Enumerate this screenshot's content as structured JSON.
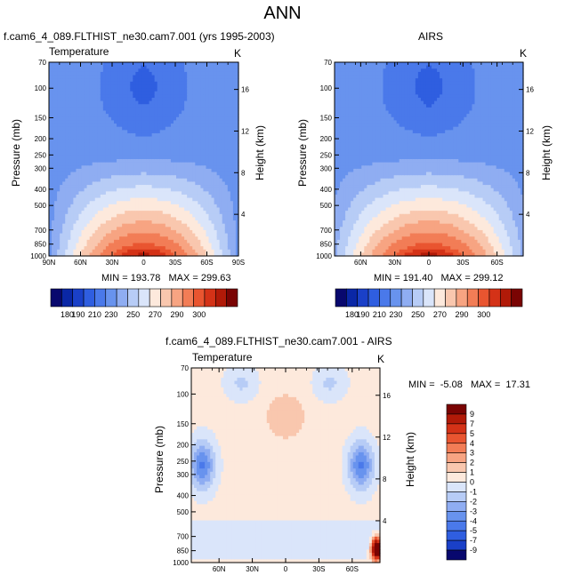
{
  "main_title": "ANN",
  "colors": {
    "temp_palette": [
      "#08086e",
      "#0a27a6",
      "#1a40c8",
      "#2f5ee0",
      "#4a79ea",
      "#6893ee",
      "#8fadf2",
      "#b7ccf6",
      "#dae5fa",
      "#fde9dc",
      "#f9c7ae",
      "#f7a482",
      "#f27d56",
      "#e95530",
      "#d43217",
      "#b11a08",
      "#7a0403"
    ],
    "diff_palette": [
      "#08086e",
      "#1a40c8",
      "#2f5ee0",
      "#4a79ea",
      "#6893ee",
      "#8fadf2",
      "#b7ccf6",
      "#dae5fa",
      "#fde9dc",
      "#f9c7ae",
      "#f7a482",
      "#f27d56",
      "#e95530",
      "#d43217",
      "#b11a08",
      "#7a0403"
    ]
  },
  "chart_data": [
    {
      "type": "heatmap",
      "title": "f.cam6_4_089.FLTHIST_ne30.cam7.001 (yrs 1995-2003)",
      "variable": "Temperature",
      "units": "K",
      "ylabel": "Pressure (mb)",
      "ylabel_right": "Height (km)",
      "x_ticks": [
        "90N",
        "60N",
        "30N",
        "0",
        "30S",
        "60S",
        "90S"
      ],
      "y_ticks": [
        "70",
        "100",
        "150",
        "200",
        "250",
        "300",
        "400",
        "500",
        "700",
        "850",
        "1000"
      ],
      "right_ticks": [
        "16",
        "12",
        "8",
        "4"
      ],
      "stats": "MIN = 193.78   MAX = 299.63",
      "colorbar_labels": [
        "180",
        "190",
        "210",
        "230",
        "250",
        "270",
        "290",
        "300"
      ]
    },
    {
      "type": "heatmap",
      "title": "AIRS",
      "variable": "",
      "units": "K",
      "ylabel": "Pressure (mb)",
      "ylabel_right": "Height (km)",
      "x_ticks": [
        "60N",
        "30N",
        "0",
        "30S",
        "60S"
      ],
      "y_ticks": [
        "70",
        "100",
        "150",
        "200",
        "250",
        "300",
        "400",
        "500",
        "700",
        "850",
        "1000"
      ],
      "right_ticks": [
        "16",
        "12",
        "8",
        "4"
      ],
      "stats": "MIN = 191.40   MAX = 299.12",
      "colorbar_labels": [
        "180",
        "190",
        "210",
        "230",
        "250",
        "270",
        "290",
        "300"
      ]
    },
    {
      "type": "heatmap",
      "title": "f.cam6_4_089.FLTHIST_ne30.cam7.001 - AIRS",
      "variable": "Temperature",
      "units": "K",
      "ylabel": "Pressure (mb)",
      "ylabel_right": "Height (km)",
      "x_ticks": [
        "60N",
        "30N",
        "0",
        "30S",
        "60S"
      ],
      "y_ticks": [
        "70",
        "100",
        "150",
        "200",
        "250",
        "300",
        "400",
        "500",
        "700",
        "850",
        "1000"
      ],
      "right_ticks": [
        "16",
        "12",
        "8",
        "4"
      ],
      "stats": "MIN =  -5.08   MAX =  17.31",
      "colorbar_labels": [
        "9",
        "7",
        "5",
        "4",
        "3",
        "2",
        "1",
        "0",
        "-1",
        "-2",
        "-3",
        "-4",
        "-5",
        "-7",
        "-9"
      ]
    }
  ]
}
